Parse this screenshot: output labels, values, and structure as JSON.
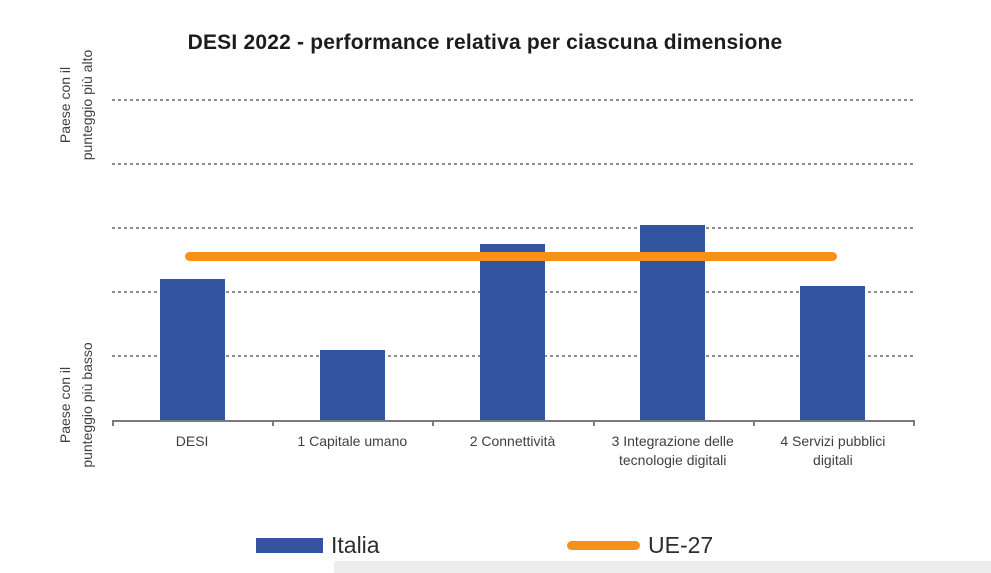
{
  "chart": {
    "title": "DESI 2022 - performance relativa per ciascuna dimensione",
    "y_axis": {
      "top_label_line1": "Paese con il",
      "top_label_line2": "punteggio più alto",
      "bottom_label_line1": "Paese con il",
      "bottom_label_line2": "punteggio più basso"
    }
  },
  "legend": {
    "items": [
      {
        "label": "Italia",
        "marker": "bar-swatch",
        "color": "#3355A0"
      },
      {
        "label": "UE-27",
        "marker": "line-swatch",
        "color": "#F8901A"
      }
    ]
  },
  "chart_data": {
    "type": "bar",
    "title": "DESI 2022 - performance relativa per ciascuna dimensione",
    "categories": [
      "DESI",
      "1 Capitale umano",
      "2 Connettività",
      "3 Integrazione delle tecnologie digitali",
      "4 Servizi pubblici digitali"
    ],
    "series": [
      {
        "name": "Italia",
        "type": "bar",
        "color": "#3355A0",
        "values": [
          0.44,
          0.22,
          0.55,
          0.61,
          0.42
        ]
      },
      {
        "name": "UE-27",
        "type": "line",
        "color": "#F8901A",
        "values": [
          0.51,
          0.51,
          0.51,
          0.51,
          0.51
        ]
      }
    ],
    "xlabel": "",
    "ylabel_top": "Paese con il punteggio più alto",
    "ylabel_bottom": "Paese con il punteggio più basso",
    "ylim": [
      0,
      1.08
    ],
    "yticks_shown": false,
    "gridlines_at": [
      0.2,
      0.4,
      0.6,
      0.8,
      1.0
    ],
    "grid_style": "horizontal dashed gray",
    "legend_position": "bottom"
  }
}
